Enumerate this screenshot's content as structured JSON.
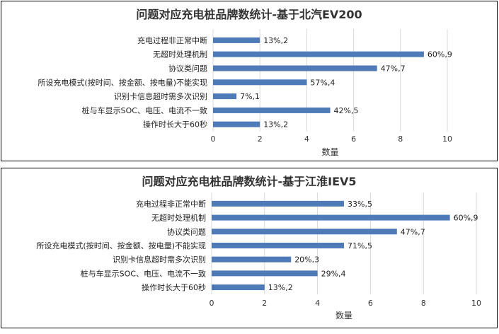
{
  "chart_data": [
    {
      "type": "bar",
      "orientation": "horizontal",
      "title": "问题对应充电桩品牌数统计-基于北汽EV200",
      "xlabel": "数量",
      "ylabel": "",
      "xlim": [
        0,
        10
      ],
      "xticks": [
        0,
        2,
        4,
        6,
        8,
        10
      ],
      "grid": true,
      "categories": [
        "充电过程非正常中断",
        "无超时处理机制",
        "协议类问题",
        "所设充电模式(按时间、按金额、按电量)不能实现",
        "识别卡信息超时需多次识别",
        "桩与车显示SOC、电压、电流不一致",
        "操作时长大于60秒"
      ],
      "values": [
        2,
        9,
        7,
        4,
        1,
        5,
        2
      ],
      "data_labels": [
        "13%,2",
        "60%,9",
        "47%,7",
        "57%,4",
        "7%,1",
        "42%,5",
        "13%,2"
      ],
      "bar_color": "#4f7ab8"
    },
    {
      "type": "bar",
      "orientation": "horizontal",
      "title": "问题对应充电桩品牌数统计-基于江淮IEV5",
      "xlabel": "数量",
      "ylabel": "",
      "xlim": [
        0,
        10
      ],
      "xticks": [
        0,
        2,
        4,
        6,
        8,
        10
      ],
      "grid": true,
      "categories": [
        "充电过程非正常中断",
        "无超时处理机制",
        "协议类问题",
        "所设充电模式(按时间、按金额、按电量)不能实现",
        "识别卡信息超时需多次识别",
        "桩与车显示SOC、电压、电流不一致",
        "操作时长大于60秒"
      ],
      "values": [
        5,
        9,
        7,
        5,
        3,
        4,
        2
      ],
      "data_labels": [
        "33%,5",
        "60%,9",
        "47%,7",
        "71%,5",
        "20%,3",
        "29%,4",
        "13%,2"
      ],
      "bar_color": "#4f7ab8"
    }
  ]
}
